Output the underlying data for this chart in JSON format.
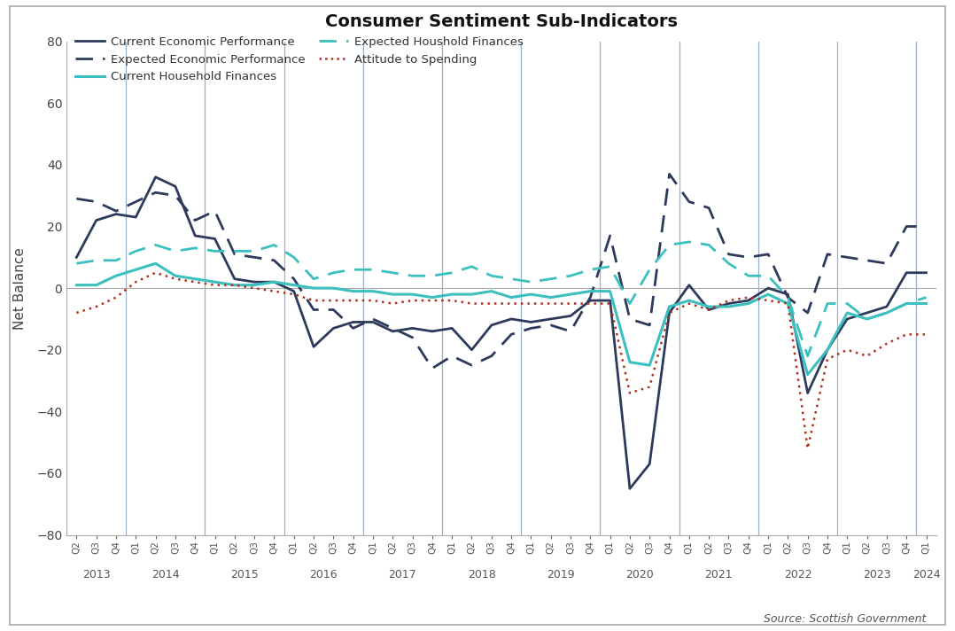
{
  "title": "Consumer Sentiment Sub-Indicators",
  "ylabel": "Net Balance",
  "source": "Source: Scottish Government",
  "background_color": "#ffffff",
  "ylim": [
    -80,
    80
  ],
  "yticks": [
    -80,
    -60,
    -40,
    -20,
    0,
    20,
    40,
    60,
    80
  ],
  "colors": {
    "current_econ": "#2e3a5c",
    "expected_econ": "#2e3a5c",
    "current_hh": "#3bbfbf",
    "expected_hh": "#3bbfbf",
    "attitude": "#b03020"
  },
  "labels": {
    "current_econ": "Current Economic Performance",
    "expected_econ": "Expected Economic Performance",
    "current_hh": "Current Household Finances",
    "expected_hh": "Expected Houshold Finances",
    "attitude": "Attitude to Spending"
  },
  "year_starts": [
    0,
    3,
    7,
    11,
    15,
    19,
    23,
    27,
    31,
    35,
    39,
    43
  ],
  "year_labels": [
    "2013",
    "2014",
    "2015",
    "2016",
    "2017",
    "2018",
    "2019",
    "2020",
    "2021",
    "2022",
    "2023",
    "2024"
  ],
  "current_econ": [
    10,
    22,
    24,
    23,
    36,
    33,
    17,
    16,
    3,
    2,
    2,
    -1,
    -19,
    -13,
    -11,
    -11,
    -14,
    -13,
    -14,
    -13,
    -20,
    -12,
    -10,
    -11,
    -10,
    -9,
    -4,
    -4,
    -65,
    -57,
    -8,
    1,
    -7,
    -5,
    -4,
    0,
    -2,
    -34,
    -20,
    -10,
    -8,
    -6,
    5,
    5
  ],
  "expected_econ": [
    29,
    28,
    25,
    28,
    31,
    30,
    22,
    25,
    11,
    10,
    9,
    3,
    -7,
    -7,
    -13,
    -10,
    -13,
    -16,
    -26,
    -22,
    -25,
    -22,
    -15,
    -13,
    -12,
    -14,
    -3,
    17,
    -10,
    -12,
    37,
    28,
    26,
    11,
    10,
    11,
    -3,
    -8,
    11,
    10,
    9,
    8,
    20,
    20
  ],
  "current_hh": [
    1,
    1,
    4,
    6,
    8,
    4,
    3,
    2,
    1,
    1,
    2,
    1,
    0,
    0,
    -1,
    -1,
    -2,
    -2,
    -3,
    -2,
    -2,
    -1,
    -3,
    -2,
    -3,
    -2,
    -1,
    -1,
    -24,
    -25,
    -6,
    -4,
    -6,
    -6,
    -5,
    -2,
    -5,
    -28,
    -20,
    -8,
    -10,
    -8,
    -5,
    -5
  ],
  "expected_hh": [
    8,
    9,
    9,
    12,
    14,
    12,
    13,
    12,
    12,
    12,
    14,
    10,
    3,
    5,
    6,
    6,
    5,
    4,
    4,
    5,
    7,
    4,
    3,
    2,
    3,
    4,
    6,
    7,
    -5,
    6,
    14,
    15,
    14,
    8,
    4,
    4,
    -3,
    -22,
    -5,
    -5,
    -10,
    -8,
    -5,
    -3
  ],
  "attitude": [
    -8,
    -6,
    -3,
    2,
    5,
    3,
    2,
    1,
    1,
    0,
    -1,
    -2,
    -4,
    -4,
    -4,
    -4,
    -5,
    -4,
    -4,
    -4,
    -5,
    -5,
    -5,
    -5,
    -5,
    -5,
    -5,
    -5,
    -34,
    -32,
    -8,
    -5,
    -7,
    -4,
    -3,
    -4,
    -5,
    -52,
    -23,
    -20,
    -22,
    -18,
    -15,
    -15
  ]
}
